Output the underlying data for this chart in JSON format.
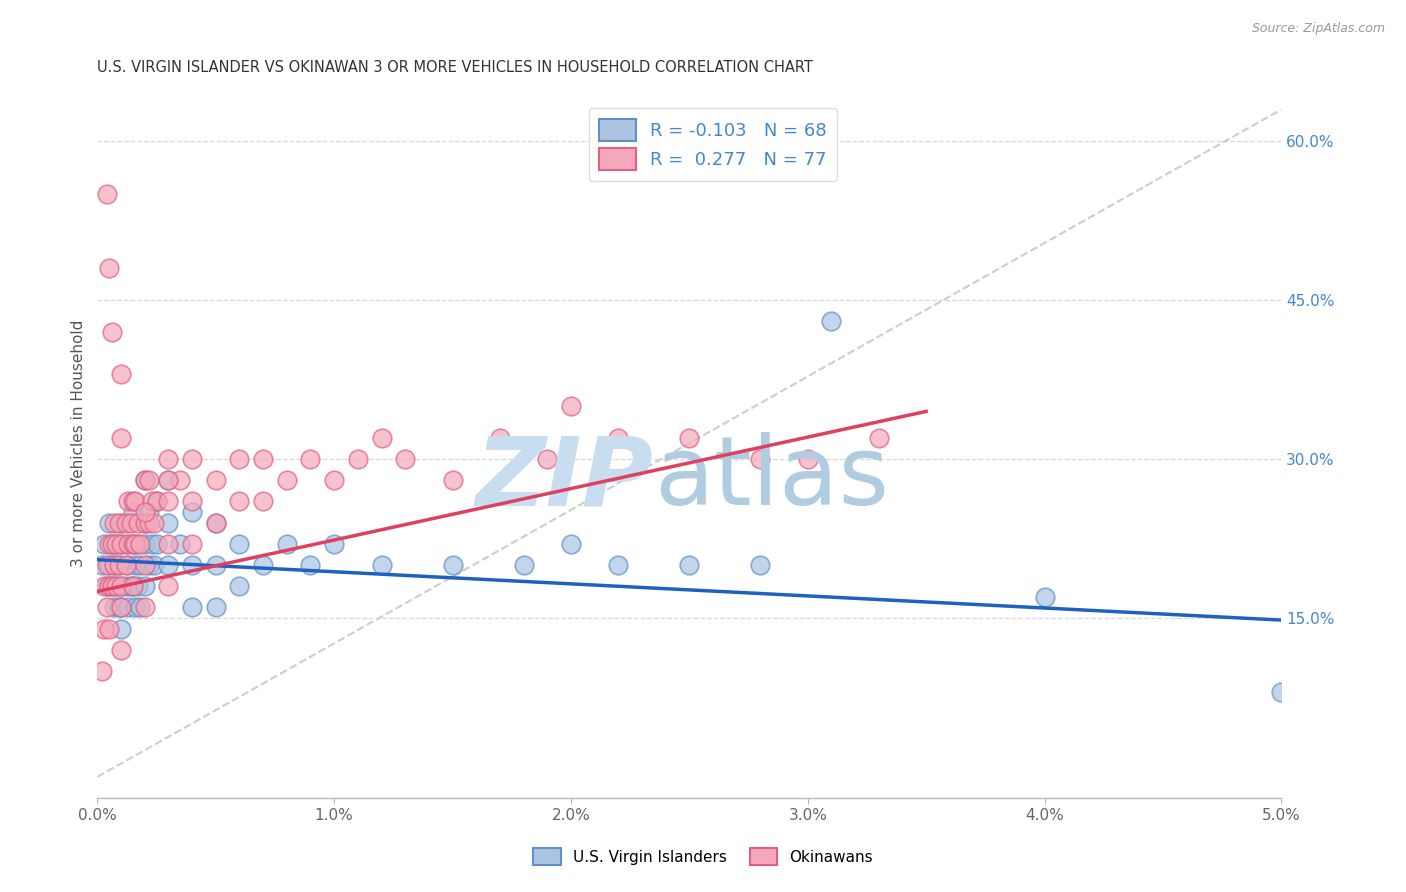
{
  "title": "U.S. VIRGIN ISLANDER VS OKINAWAN 3 OR MORE VEHICLES IN HOUSEHOLD CORRELATION CHART",
  "source": "Source: ZipAtlas.com",
  "ylabel": "3 or more Vehicles in Household",
  "xlim": [
    0.0,
    0.05
  ],
  "ylim": [
    -0.02,
    0.65
  ],
  "xticks": [
    0.0,
    0.01,
    0.02,
    0.03,
    0.04,
    0.05
  ],
  "xtick_labels": [
    "0.0%",
    "1.0%",
    "2.0%",
    "3.0%",
    "4.0%",
    "5.0%"
  ],
  "yticks_right": [
    0.15,
    0.3,
    0.45,
    0.6
  ],
  "ytick_labels_right": [
    "15.0%",
    "30.0%",
    "45.0%",
    "60.0%"
  ],
  "legend_blue_r": "-0.103",
  "legend_blue_n": "68",
  "legend_pink_r": "0.277",
  "legend_pink_n": "77",
  "blue_color": "#aac4e2",
  "pink_color": "#f5a8bc",
  "blue_edge_color": "#6090c8",
  "pink_edge_color": "#e06080",
  "blue_line_color": "#2060c0",
  "pink_line_color": "#e04060",
  "ref_line_color": "#c8c8c8",
  "grid_color": "#d8d8d8",
  "legend_label_blue": "U.S. Virgin Islanders",
  "legend_label_pink": "Okinawans",
  "blue_trend": [
    0.0,
    0.05,
    0.205,
    0.148
  ],
  "pink_trend": [
    0.0,
    0.035,
    0.175,
    0.345
  ],
  "ref_line": [
    0.0,
    0.05,
    0.0,
    0.63
  ],
  "blue_scatter_x": [
    0.0002,
    0.0003,
    0.0004,
    0.0005,
    0.0005,
    0.0006,
    0.0006,
    0.0007,
    0.0007,
    0.0008,
    0.0008,
    0.0009,
    0.0009,
    0.001,
    0.001,
    0.001,
    0.001,
    0.001,
    0.0012,
    0.0012,
    0.0013,
    0.0013,
    0.0014,
    0.0015,
    0.0015,
    0.0015,
    0.0016,
    0.0016,
    0.0017,
    0.0017,
    0.0018,
    0.0018,
    0.002,
    0.002,
    0.002,
    0.002,
    0.0022,
    0.0022,
    0.0023,
    0.0024,
    0.0025,
    0.0025,
    0.003,
    0.003,
    0.003,
    0.0035,
    0.004,
    0.004,
    0.004,
    0.005,
    0.005,
    0.005,
    0.006,
    0.006,
    0.007,
    0.008,
    0.009,
    0.01,
    0.012,
    0.015,
    0.018,
    0.02,
    0.022,
    0.025,
    0.028,
    0.031,
    0.04,
    0.05
  ],
  "blue_scatter_y": [
    0.2,
    0.22,
    0.18,
    0.24,
    0.2,
    0.22,
    0.18,
    0.2,
    0.16,
    0.22,
    0.18,
    0.2,
    0.16,
    0.24,
    0.22,
    0.18,
    0.16,
    0.14,
    0.22,
    0.18,
    0.2,
    0.16,
    0.18,
    0.25,
    0.22,
    0.18,
    0.2,
    0.16,
    0.22,
    0.18,
    0.2,
    0.16,
    0.28,
    0.24,
    0.22,
    0.18,
    0.25,
    0.2,
    0.22,
    0.2,
    0.26,
    0.22,
    0.28,
    0.24,
    0.2,
    0.22,
    0.25,
    0.2,
    0.16,
    0.24,
    0.2,
    0.16,
    0.22,
    0.18,
    0.2,
    0.22,
    0.2,
    0.22,
    0.2,
    0.2,
    0.2,
    0.22,
    0.2,
    0.2,
    0.2,
    0.43,
    0.17,
    0.08
  ],
  "pink_scatter_x": [
    0.0002,
    0.0003,
    0.0003,
    0.0004,
    0.0004,
    0.0005,
    0.0005,
    0.0005,
    0.0006,
    0.0006,
    0.0007,
    0.0007,
    0.0008,
    0.0008,
    0.0009,
    0.0009,
    0.001,
    0.001,
    0.001,
    0.001,
    0.0012,
    0.0012,
    0.0013,
    0.0013,
    0.0014,
    0.0015,
    0.0015,
    0.0015,
    0.0016,
    0.0016,
    0.0017,
    0.0018,
    0.002,
    0.002,
    0.002,
    0.002,
    0.0022,
    0.0022,
    0.0023,
    0.0024,
    0.0025,
    0.003,
    0.003,
    0.003,
    0.003,
    0.0035,
    0.004,
    0.004,
    0.004,
    0.005,
    0.005,
    0.006,
    0.006,
    0.007,
    0.007,
    0.008,
    0.009,
    0.01,
    0.011,
    0.012,
    0.013,
    0.015,
    0.017,
    0.019,
    0.02,
    0.022,
    0.025,
    0.028,
    0.03,
    0.033,
    0.0004,
    0.0005,
    0.0006,
    0.001,
    0.001,
    0.002,
    0.003
  ],
  "pink_scatter_y": [
    0.1,
    0.18,
    0.14,
    0.2,
    0.16,
    0.22,
    0.18,
    0.14,
    0.22,
    0.18,
    0.24,
    0.2,
    0.22,
    0.18,
    0.24,
    0.2,
    0.22,
    0.18,
    0.16,
    0.12,
    0.24,
    0.2,
    0.26,
    0.22,
    0.24,
    0.26,
    0.22,
    0.18,
    0.26,
    0.22,
    0.24,
    0.22,
    0.28,
    0.24,
    0.2,
    0.16,
    0.28,
    0.24,
    0.26,
    0.24,
    0.26,
    0.3,
    0.26,
    0.22,
    0.18,
    0.28,
    0.3,
    0.26,
    0.22,
    0.28,
    0.24,
    0.3,
    0.26,
    0.3,
    0.26,
    0.28,
    0.3,
    0.28,
    0.3,
    0.32,
    0.3,
    0.28,
    0.32,
    0.3,
    0.35,
    0.32,
    0.32,
    0.3,
    0.3,
    0.32,
    0.55,
    0.48,
    0.42,
    0.38,
    0.32,
    0.25,
    0.28
  ]
}
